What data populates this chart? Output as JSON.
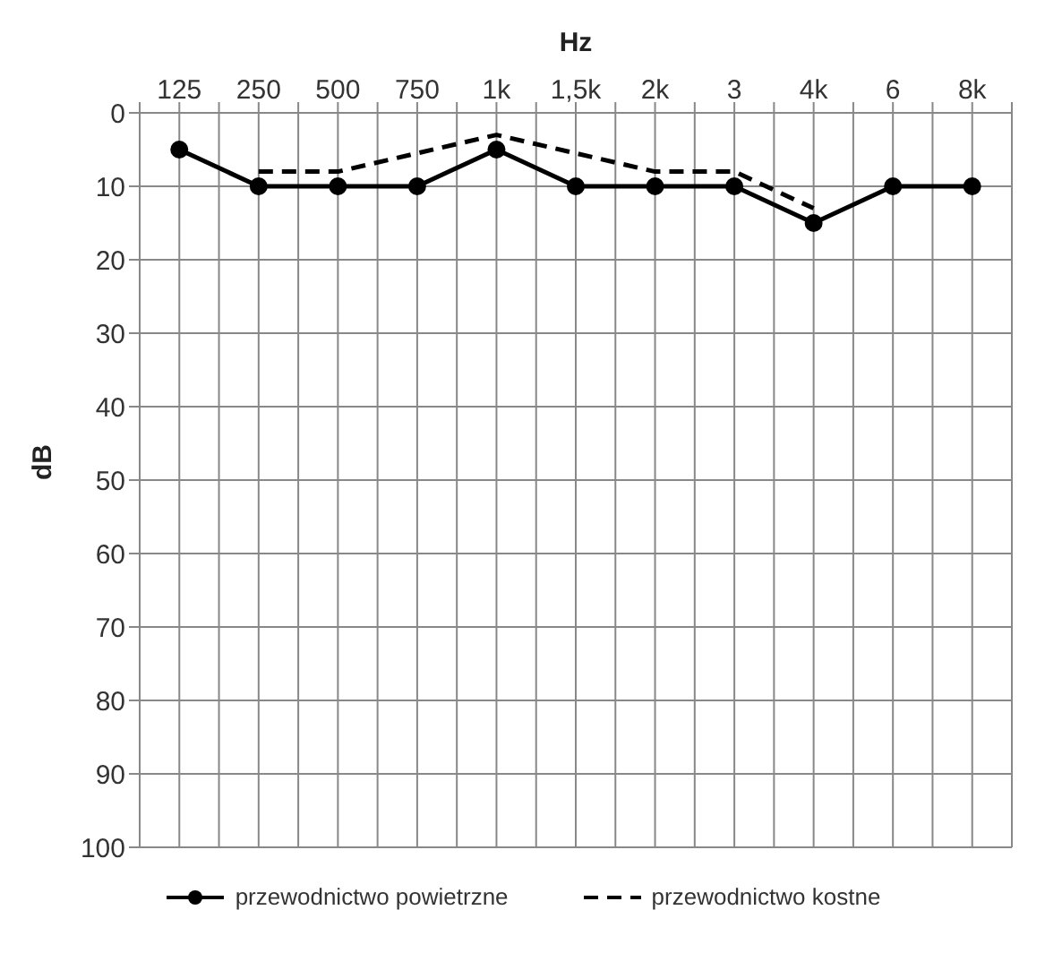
{
  "chart_data": {
    "type": "line",
    "xlabel": "Hz",
    "ylabel": "dB",
    "categories": [
      "125",
      "250",
      "500",
      "750",
      "1k",
      "1,5k",
      "2k",
      "3",
      "4k",
      "6",
      "8k"
    ],
    "series": [
      {
        "name": "przewodnictwo powietrzne",
        "color": "#000000",
        "marker": "circle",
        "line_style": "solid",
        "values": [
          5,
          10,
          10,
          10,
          5,
          10,
          10,
          10,
          15,
          10,
          10
        ]
      },
      {
        "name": "przewodnictwo kostne",
        "color": "#000000",
        "marker": "none",
        "line_style": "dashed",
        "values": [
          null,
          8,
          8,
          null,
          3,
          null,
          8,
          8,
          13,
          null,
          null
        ]
      }
    ],
    "ylim": [
      100,
      0
    ],
    "yticks": [
      0,
      10,
      20,
      30,
      40,
      50,
      60,
      70,
      80,
      90,
      100
    ],
    "grid": true,
    "legend": "bottom"
  }
}
